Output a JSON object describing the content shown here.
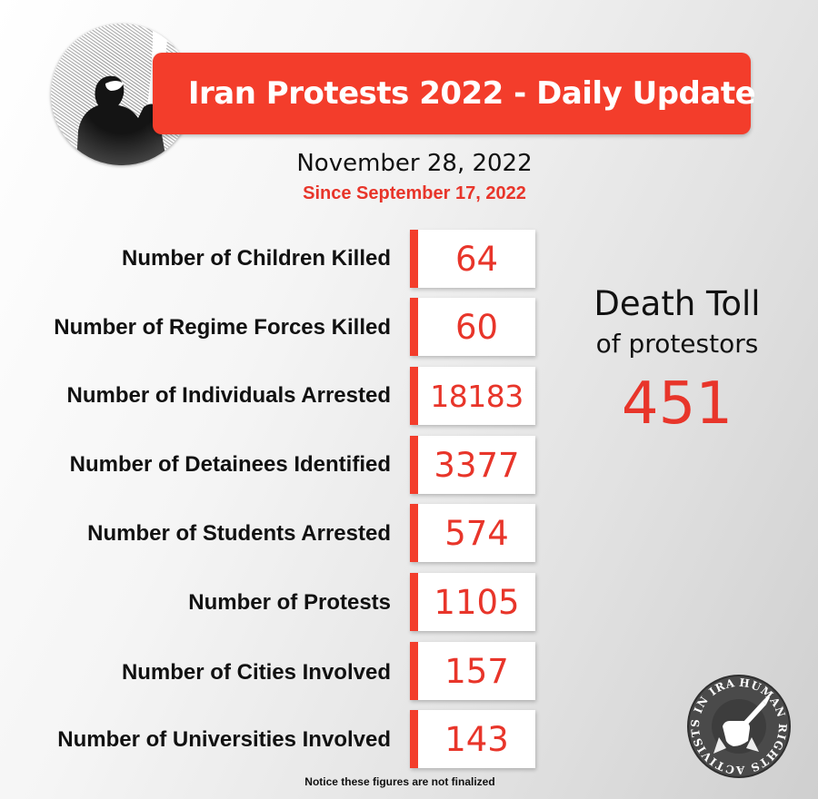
{
  "header": {
    "title": "Iran Protests 2022 - Daily Update",
    "date": "November 28, 2022",
    "since": "Since September 17, 2022"
  },
  "stats": [
    {
      "label": "Number of Children Killed",
      "value": "64"
    },
    {
      "label": "Number of Regime Forces Killed",
      "value": "60"
    },
    {
      "label": "Number of Individuals Arrested",
      "value": "18183"
    },
    {
      "label": "Number of Detainees Identified",
      "value": "3377"
    },
    {
      "label": "Number of Students Arrested",
      "value": "574"
    },
    {
      "label": "Number of Protests",
      "value": "1105"
    },
    {
      "label": "Number of Cities Involved",
      "value": "157"
    },
    {
      "label": "Number of Universities Involved",
      "value": "143"
    }
  ],
  "death_toll": {
    "title": "Death Toll",
    "subtitle": "of protestors",
    "value": "451"
  },
  "notice": "Notice these figures are not finalized",
  "badge": {
    "text": "HUMAN RIGHTS ACTIVISTS IN IRAN",
    "icon": "raised-fist-pen-icon"
  },
  "colors": {
    "accent": "#f33d2b",
    "value_red": "#e8352a",
    "text": "#111111"
  }
}
